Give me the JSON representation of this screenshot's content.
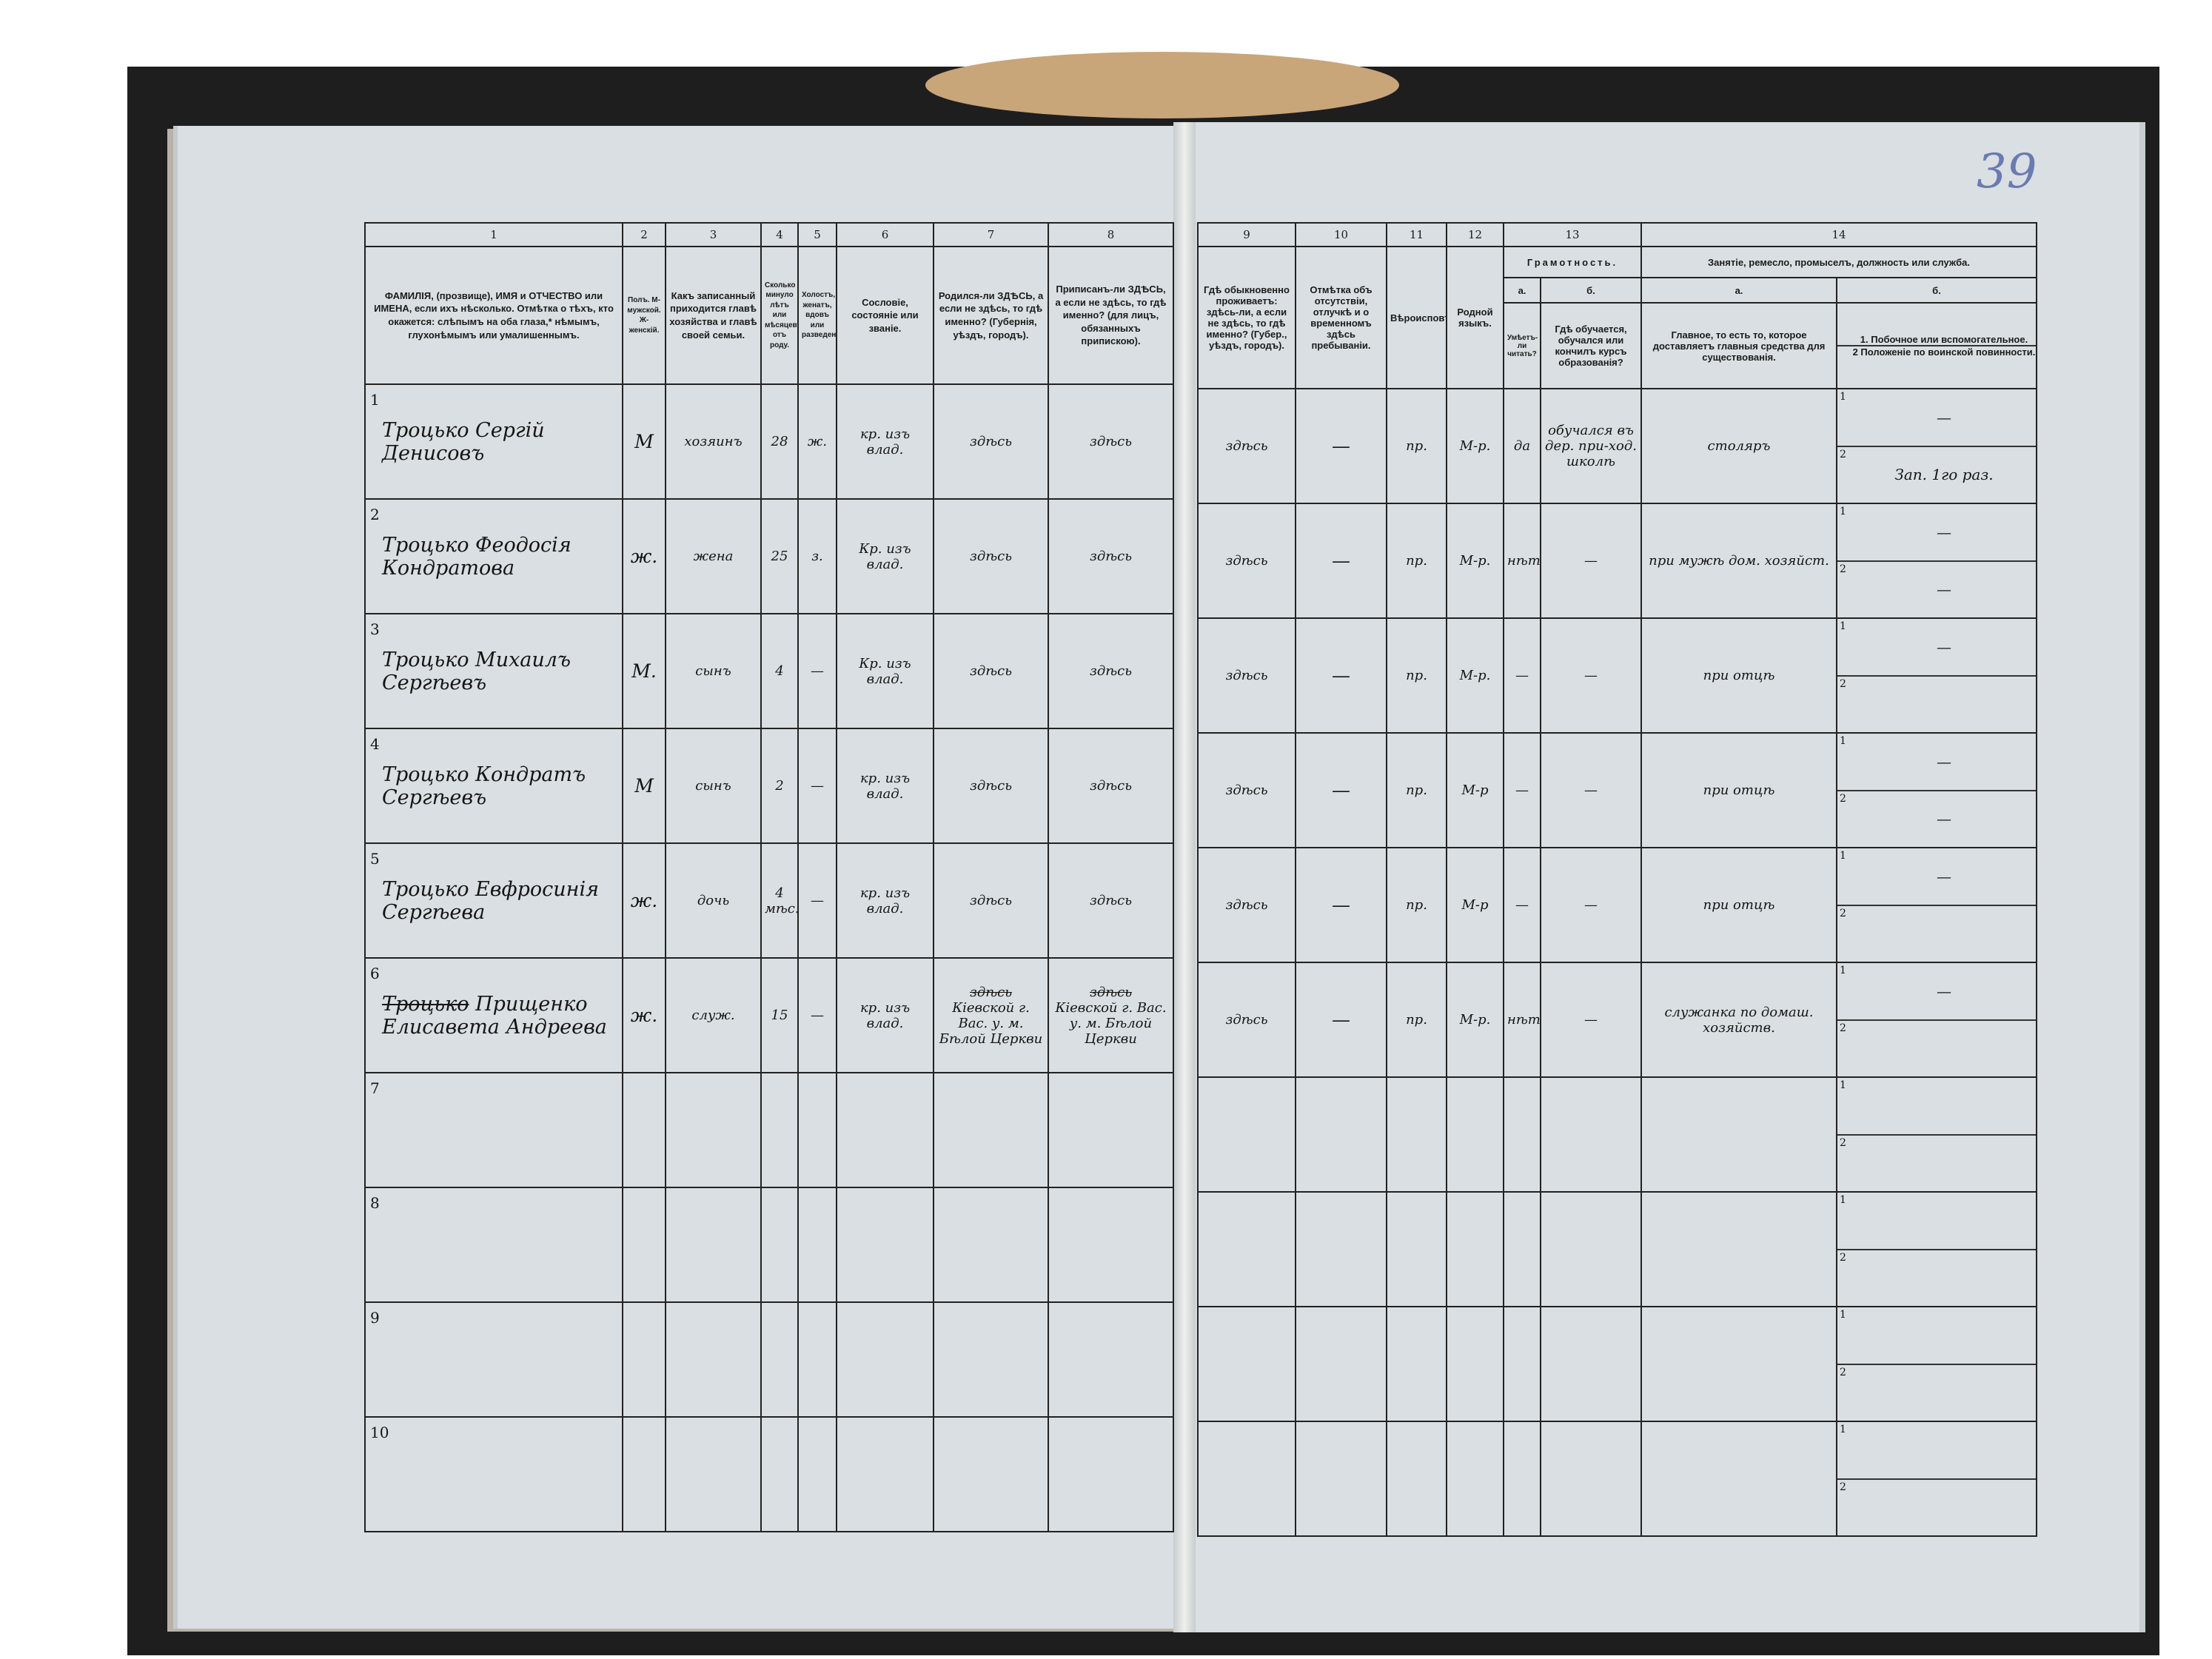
{
  "page_number": "39",
  "left_table": {
    "column_numbers": [
      "1",
      "2",
      "3",
      "4",
      "5",
      "6",
      "7",
      "8"
    ],
    "headers": [
      "ФАМИЛІЯ, (прозвище), ИМЯ и ОТЧЕСТВО или ИМЕНА, если ихъ нѣсколько. Отмѣтка о тѣхъ, кто окажется: слѣпымъ на оба глаза,* нѣмымъ, глухонѣмымъ или умалишеннымъ.",
      "Полъ. М-мужской. Ж-женскій.",
      "Какъ записанный приходится главѣ хозяйства и главѣ своей семьи.",
      "Сколько минуло лѣтъ или мѣсяцевъ отъ роду.",
      "Холостъ, женатъ, вдовъ или разведенъ.",
      "Сословіе, состояніе или званіе.",
      "Родился-ли ЗДѢСЬ, а если не здѣсь, то гдѣ именно? (Губернія, уѣздъ, городъ).",
      "Приписанъ-ли ЗДѢСЬ, а если не здѣсь, то гдѣ именно? (для лицъ, обязанныхъ припискою)."
    ]
  },
  "right_table": {
    "column_numbers": [
      "9",
      "10",
      "11",
      "12",
      "13",
      "14"
    ],
    "headers": {
      "c9": "Гдѣ обыкновенно проживаетъ: здѣсь-ли, а если не здѣсь, то гдѣ именно? (Губер., уѣздъ, городъ).",
      "c10": "Отмѣтка объ отсутствіи, отлучкѣ и о временномъ здѣсь пребываніи.",
      "c11": "Вѣроисповѣданіе.",
      "c12": "Родной языкъ.",
      "c13": "Грамотность.",
      "c13a_letter": "а.",
      "c13b_letter": "б.",
      "c13a": "Умѣетъ-ли читать?",
      "c13b": "Гдѣ обучается, обучался или кончилъ курсъ образованія?",
      "c14": "Занятіе, ремесло, промыселъ, должность или служба.",
      "c14a_letter": "а.",
      "c14b_letter": "б.",
      "c14a": "Главное, то есть то, которое доставляетъ главныя средства для существованія.",
      "c14b1": "1. Побочное или вспомогательное.",
      "c14b2": "2 Положеніе по воинской повинности."
    }
  },
  "sub_labels": [
    "1",
    "2"
  ],
  "rows": [
    {
      "num": "1",
      "name": "Троцько Сергій Денисовъ",
      "sex": "М",
      "relation": "хозяинъ",
      "age": "28",
      "marital": "ж.",
      "estate": "кр. изъ влад.",
      "born": "здѣсь",
      "registered": "здѣсь",
      "resides": "здѣсь",
      "absence": "—",
      "religion": "пр.",
      "language": "М-р.",
      "literate": "да",
      "school": "обучался въ дер. при-ход. школѣ",
      "occupation": "столяръ",
      "side": "—",
      "military": "Зап. 1го раз."
    },
    {
      "num": "2",
      "name": "Троцько Феодосія Кондратова",
      "sex": "ж.",
      "relation": "жена",
      "age": "25",
      "marital": "з.",
      "estate": "Кр. изъ влад.",
      "born": "здѣсь",
      "registered": "здѣсь",
      "resides": "здѣсь",
      "absence": "—",
      "religion": "пр.",
      "language": "М-р.",
      "literate": "нѣтъ",
      "school": "—",
      "occupation": "при мужѣ дом. хозяйст.",
      "side": "—",
      "military": "—"
    },
    {
      "num": "3",
      "name": "Троцько Михаилъ Сергѣевъ",
      "sex": "М.",
      "relation": "сынъ",
      "age": "4",
      "marital": "—",
      "estate": "Кр. изъ влад.",
      "born": "здѣсь",
      "registered": "здѣсь",
      "resides": "здѣсь",
      "absence": "—",
      "religion": "пр.",
      "language": "М-р.",
      "literate": "—",
      "school": "—",
      "occupation": "при отцѣ",
      "side": "—",
      "military": ""
    },
    {
      "num": "4",
      "name": "Троцько Кондратъ Сергѣевъ",
      "sex": "М",
      "relation": "сынъ",
      "age": "2",
      "marital": "—",
      "estate": "кр. изъ влад.",
      "born": "здѣсь",
      "registered": "здѣсь",
      "resides": "здѣсь",
      "absence": "—",
      "religion": "пр.",
      "language": "М-р",
      "literate": "—",
      "school": "—",
      "occupation": "при отцѣ",
      "side": "—",
      "military": "—"
    },
    {
      "num": "5",
      "name": "Троцько Евфросинія Сергѣева",
      "sex": "ж.",
      "relation": "дочь",
      "age": "4 мѣс.",
      "marital": "—",
      "estate": "кр. изъ влад.",
      "born": "здѣсь",
      "registered": "здѣсь",
      "resides": "здѣсь",
      "absence": "—",
      "religion": "пр.",
      "language": "М-р",
      "literate": "—",
      "school": "—",
      "occupation": "при отцѣ",
      "side": "—",
      "military": ""
    },
    {
      "num": "6",
      "name_struck": "Троцько",
      "name": "Прищенко Елисавета Андреева",
      "sex": "ж.",
      "relation": "служ.",
      "age": "15",
      "marital": "—",
      "estate": "кр. изъ влад.",
      "born_struck": "здѣсь",
      "born": "Кіевской г. Вас. у. м. Бѣлой Церкви",
      "registered_struck": "здѣсь",
      "registered": "Кіевской г. Вас. у. м. Бѣлой Церкви",
      "resides": "здѣсь",
      "absence": "—",
      "religion": "пр.",
      "language": "М-р.",
      "literate": "нѣтъ",
      "school": "—",
      "occupation": "служанка по домаш. хозяйств.",
      "side": "—",
      "military": ""
    },
    {
      "num": "7"
    },
    {
      "num": "8"
    },
    {
      "num": "9"
    },
    {
      "num": "10"
    }
  ]
}
